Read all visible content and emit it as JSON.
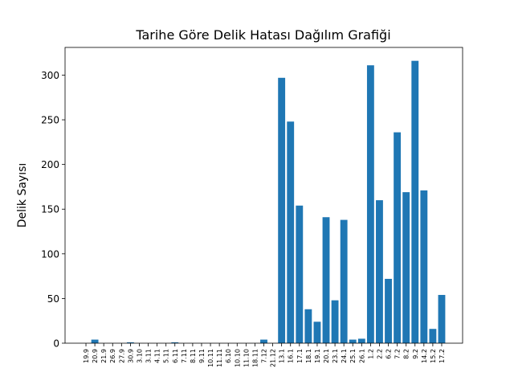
{
  "chart_data": {
    "type": "bar",
    "title": "Tarihe Göre Delik Hatası Dağılım Grafiği",
    "y_label": "Delik Sayısı",
    "categories": [
      "19.9",
      "20.9",
      "21.9",
      "26.9",
      "27.9",
      "30.9",
      "3.10",
      "3.11",
      "4.11",
      "5.11",
      "6.11",
      "7.11",
      "8.11",
      "9.11",
      "10.11",
      "11.11",
      "6.10",
      "10.10",
      "11.10",
      "18.11",
      "7.12",
      "21.12",
      "13.1",
      "16.1",
      "17.1",
      "18.1",
      "19.1",
      "20.1",
      "23.1",
      "24.1",
      "25.1",
      "26.1",
      "1.2",
      "2.2",
      "6.2",
      "7.2",
      "8.2",
      "9.2",
      "14.2",
      "15.2",
      "17.2"
    ],
    "values": [
      0,
      4,
      0,
      0,
      0,
      1,
      0,
      0,
      0,
      0,
      1,
      0,
      0,
      0,
      0,
      0,
      0,
      0,
      0,
      0,
      4,
      0,
      297,
      248,
      154,
      38,
      24,
      141,
      48,
      138,
      4,
      5,
      311,
      160,
      72,
      236,
      169,
      316,
      171,
      16,
      54
    ],
    "color": "#1f77b4",
    "ylim": [
      0,
      331
    ],
    "yticks": [
      0,
      50,
      100,
      150,
      200,
      250,
      300
    ]
  }
}
